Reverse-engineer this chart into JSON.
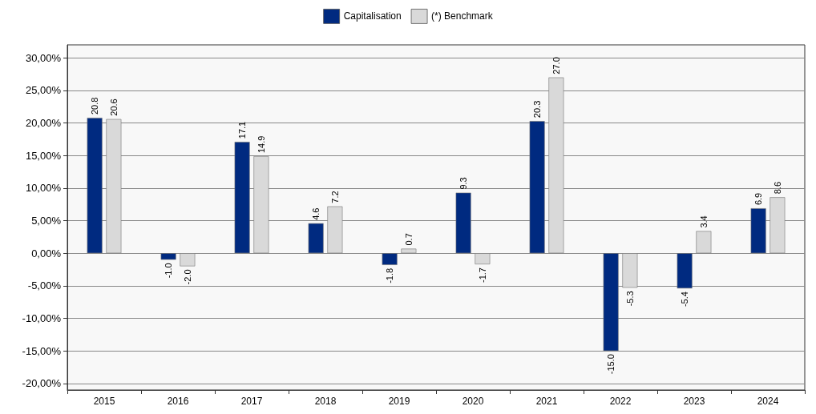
{
  "chart_data": {
    "type": "bar",
    "categories": [
      "2015",
      "2016",
      "2017",
      "2018",
      "2019",
      "2020",
      "2021",
      "2022",
      "2023",
      "2024"
    ],
    "series": [
      {
        "name": "Capitalisation",
        "color": "#002a80",
        "values": [
          20.8,
          -1.0,
          17.1,
          4.6,
          -1.8,
          9.3,
          20.3,
          -15.0,
          -5.4,
          6.9
        ],
        "value_labels": [
          "20.8",
          "-1.0",
          "17.1",
          "4.6",
          "-1.8",
          "9.3",
          "20.3",
          "-15.0",
          "-5.4",
          "6.9"
        ]
      },
      {
        "name": "(*) Benchmark",
        "color": "#d9d9d9",
        "values": [
          20.6,
          -2.0,
          14.9,
          7.2,
          0.7,
          -1.7,
          27.0,
          -5.3,
          3.4,
          8.6
        ],
        "value_labels": [
          "20.6",
          "-2.0",
          "14.9",
          "7.2",
          "0.7",
          "-1.7",
          "27.0",
          "-5.3",
          "3.4",
          "8.6"
        ]
      }
    ],
    "ylim": [
      -21,
      32
    ],
    "yticks": [
      {
        "value": -20,
        "label": "-20,00%"
      },
      {
        "value": -15,
        "label": "-15,00%"
      },
      {
        "value": -10,
        "label": "-10,00%"
      },
      {
        "value": -5,
        "label": "-5,00%"
      },
      {
        "value": 0,
        "label": "0,00%"
      },
      {
        "value": 5,
        "label": "5,00%"
      },
      {
        "value": 10,
        "label": "10,00%"
      },
      {
        "value": 15,
        "label": "15,00%"
      },
      {
        "value": 20,
        "label": "20,00%"
      },
      {
        "value": 25,
        "label": "25,00%"
      },
      {
        "value": 30,
        "label": "30,00%"
      }
    ],
    "grid": "y",
    "legend": "top"
  }
}
